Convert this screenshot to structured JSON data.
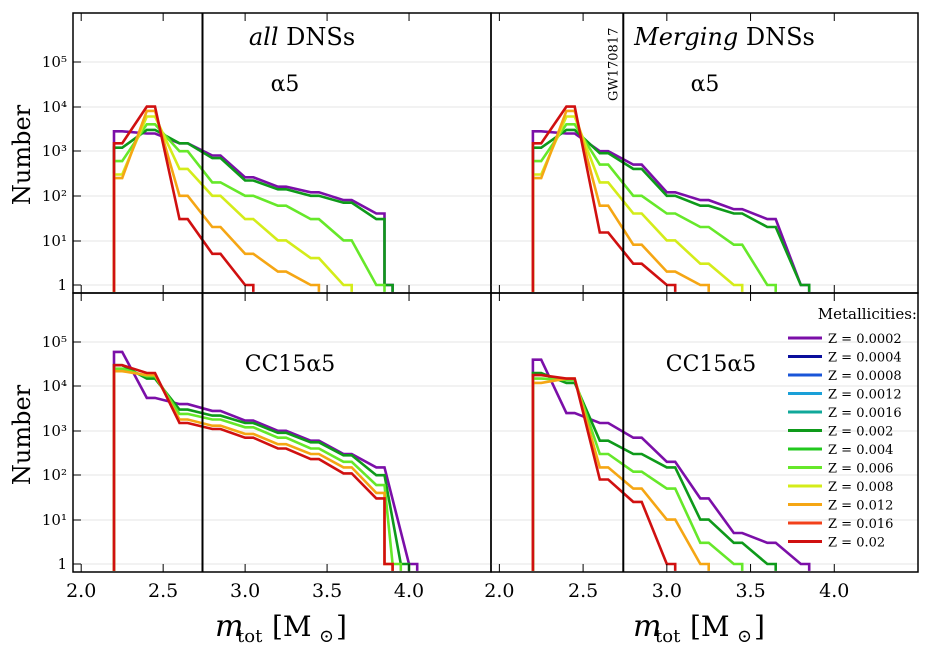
{
  "figure": {
    "xlabel": "m",
    "xlabel_sub": "tot",
    "xlabel_unit": "[M",
    "xlabel_unit_sub": "⊙",
    "xlabel_close": "]",
    "ylabel": "Number",
    "legend_title": "Metallicities:",
    "vline_label": "GW170817"
  },
  "chart_data": [
    {
      "type": "line",
      "panel": "top-left",
      "title_italic": "all",
      "title_rest": " DNSs",
      "model": "α5",
      "ylog": true,
      "xlim": [
        1.95,
        4.5
      ],
      "ylim": [
        0.7,
        1000000
      ],
      "xticks": [
        "2.0",
        "2.5",
        "3.0",
        "3.5",
        "4.0"
      ],
      "yticks": [
        "1",
        "10¹",
        "10²",
        "10³",
        "10⁴",
        "10⁵"
      ],
      "vline_x": 2.74,
      "series": [
        {
          "name": "Z = 0.0002",
          "x": [
            2.2,
            2.4,
            2.6,
            2.8,
            3.0,
            3.2,
            3.4,
            3.6,
            3.8,
            3.85
          ],
          "values": [
            2800,
            2500,
            1500,
            800,
            260,
            160,
            120,
            80,
            40,
            1
          ]
        },
        {
          "name": "Z = 0.002",
          "x": [
            2.2,
            2.4,
            2.6,
            2.8,
            3.0,
            3.2,
            3.4,
            3.6,
            3.8,
            3.85
          ],
          "values": [
            1200,
            3000,
            1500,
            700,
            220,
            140,
            100,
            70,
            30,
            1
          ]
        },
        {
          "name": "Z = 0.006",
          "x": [
            2.2,
            2.4,
            2.6,
            2.8,
            3.0,
            3.2,
            3.4,
            3.6,
            3.8
          ],
          "values": [
            600,
            4000,
            1000,
            200,
            100,
            60,
            30,
            10,
            1
          ]
        },
        {
          "name": "Z = 0.008",
          "x": [
            2.2,
            2.4,
            2.6,
            2.8,
            3.0,
            3.2,
            3.4,
            3.6
          ],
          "values": [
            300,
            6000,
            400,
            100,
            30,
            10,
            4,
            1
          ]
        },
        {
          "name": "Z = 0.012",
          "x": [
            2.2,
            2.4,
            2.6,
            2.8,
            3.0,
            3.2,
            3.4
          ],
          "values": [
            250,
            8000,
            100,
            20,
            5,
            2,
            1
          ]
        },
        {
          "name": "Z = 0.02",
          "x": [
            2.2,
            2.4,
            2.6,
            2.8,
            3.0
          ],
          "values": [
            1500,
            10000,
            30,
            5,
            1
          ]
        }
      ]
    },
    {
      "type": "line",
      "panel": "top-right",
      "title_italic": "Merging",
      "title_rest": " DNSs",
      "model": "α5",
      "ylog": true,
      "xlim": [
        1.95,
        4.5
      ],
      "ylim": [
        0.7,
        1000000
      ],
      "xticks": [
        "2.0",
        "2.5",
        "3.0",
        "3.5",
        "4.0"
      ],
      "yticks": [],
      "vline_x": 2.74,
      "series": [
        {
          "name": "Z = 0.0002",
          "x": [
            2.2,
            2.4,
            2.6,
            2.8,
            3.0,
            3.2,
            3.4,
            3.6,
            3.8
          ],
          "values": [
            2800,
            2500,
            1000,
            500,
            120,
            80,
            50,
            30,
            1
          ]
        },
        {
          "name": "Z = 0.002",
          "x": [
            2.2,
            2.4,
            2.6,
            2.8,
            3.0,
            3.2,
            3.4,
            3.6,
            3.8
          ],
          "values": [
            1200,
            3000,
            900,
            400,
            100,
            60,
            40,
            20,
            1
          ]
        },
        {
          "name": "Z = 0.006",
          "x": [
            2.2,
            2.4,
            2.6,
            2.8,
            3.0,
            3.2,
            3.4,
            3.6
          ],
          "values": [
            600,
            4000,
            500,
            100,
            40,
            20,
            8,
            1
          ]
        },
        {
          "name": "Z = 0.008",
          "x": [
            2.2,
            2.4,
            2.6,
            2.8,
            3.0,
            3.2,
            3.4
          ],
          "values": [
            300,
            6000,
            200,
            40,
            10,
            3,
            1
          ]
        },
        {
          "name": "Z = 0.012",
          "x": [
            2.2,
            2.4,
            2.6,
            2.8,
            3.0,
            3.2
          ],
          "values": [
            250,
            8000,
            60,
            8,
            2,
            1
          ]
        },
        {
          "name": "Z = 0.02",
          "x": [
            2.2,
            2.4,
            2.6,
            2.8,
            3.0
          ],
          "values": [
            1500,
            10000,
            15,
            3,
            1
          ]
        }
      ]
    },
    {
      "type": "line",
      "panel": "bottom-left",
      "model": "CC15α5",
      "ylog": true,
      "xlim": [
        1.95,
        4.5
      ],
      "ylim": [
        0.7,
        1000000
      ],
      "xticks": [
        "2.0",
        "2.5",
        "3.0",
        "3.5",
        "4.0"
      ],
      "yticks": [
        "1",
        "10¹",
        "10²",
        "10³",
        "10⁴",
        "10⁵"
      ],
      "vline_x": 2.74,
      "series": [
        {
          "name": "Z = 0.0002",
          "x": [
            2.2,
            2.4,
            2.6,
            2.8,
            3.0,
            3.2,
            3.4,
            3.6,
            3.8,
            4.0
          ],
          "values": [
            60000,
            5500,
            4000,
            2800,
            1700,
            1000,
            600,
            300,
            150,
            1
          ]
        },
        {
          "name": "Z = 0.002",
          "x": [
            2.2,
            2.4,
            2.6,
            2.8,
            3.0,
            3.2,
            3.4,
            3.6,
            3.8,
            3.95
          ],
          "values": [
            30000,
            15000,
            3000,
            2200,
            1500,
            900,
            550,
            280,
            100,
            1
          ]
        },
        {
          "name": "Z = 0.006",
          "x": [
            2.2,
            2.4,
            2.6,
            2.8,
            3.0,
            3.2,
            3.4,
            3.6,
            3.8,
            3.9
          ],
          "values": [
            25000,
            17000,
            2400,
            1800,
            1200,
            700,
            400,
            200,
            60,
            1
          ]
        },
        {
          "name": "Z = 0.012",
          "x": [
            2.2,
            2.4,
            2.6,
            2.8,
            3.0,
            3.2,
            3.4,
            3.6,
            3.8,
            3.85
          ],
          "values": [
            22000,
            18000,
            1800,
            1300,
            850,
            500,
            300,
            150,
            40,
            1
          ]
        },
        {
          "name": "Z = 0.02",
          "x": [
            2.2,
            2.4,
            2.6,
            2.8,
            3.0,
            3.2,
            3.4,
            3.6,
            3.8,
            3.85
          ],
          "values": [
            30000,
            20000,
            1500,
            1100,
            700,
            400,
            230,
            110,
            30,
            1
          ]
        }
      ]
    },
    {
      "type": "line",
      "panel": "bottom-right",
      "model": "CC15α5",
      "ylog": true,
      "xlim": [
        1.95,
        4.5
      ],
      "ylim": [
        0.7,
        1000000
      ],
      "xticks": [
        "2.0",
        "2.5",
        "3.0",
        "3.5",
        "4.0"
      ],
      "yticks": [],
      "vline_x": 2.74,
      "series": [
        {
          "name": "Z = 0.0002",
          "x": [
            2.2,
            2.4,
            2.6,
            2.8,
            3.0,
            3.2,
            3.4,
            3.6,
            3.8
          ],
          "values": [
            40000,
            2500,
            1500,
            700,
            200,
            30,
            5,
            3,
            1
          ]
        },
        {
          "name": "Z = 0.002",
          "x": [
            2.2,
            2.4,
            2.6,
            2.8,
            3.0,
            3.2,
            3.4,
            3.6
          ],
          "values": [
            20000,
            12000,
            600,
            300,
            150,
            10,
            3,
            1
          ]
        },
        {
          "name": "Z = 0.006",
          "x": [
            2.2,
            2.4,
            2.6,
            2.8,
            3.0,
            3.2,
            3.4
          ],
          "values": [
            15000,
            14000,
            300,
            120,
            50,
            3,
            1
          ]
        },
        {
          "name": "Z = 0.012",
          "x": [
            2.2,
            2.4,
            2.6,
            2.8,
            3.0,
            3.2
          ],
          "values": [
            12000,
            15000,
            150,
            50,
            10,
            1
          ]
        },
        {
          "name": "Z = 0.02",
          "x": [
            2.2,
            2.4,
            2.6,
            2.8,
            3.0
          ],
          "values": [
            18000,
            15000,
            80,
            25,
            1
          ]
        }
      ]
    }
  ],
  "legend": {
    "title": "Metallicities:",
    "entries": [
      {
        "label": "Z = 0.0002",
        "color": "#7b0fa8"
      },
      {
        "label": "Z = 0.0004",
        "color": "#0a0f9c"
      },
      {
        "label": "Z = 0.0008",
        "color": "#1a55d8"
      },
      {
        "label": "Z = 0.0012",
        "color": "#1aa0d8"
      },
      {
        "label": "Z = 0.0016",
        "color": "#10a89a"
      },
      {
        "label": "Z = 0.002",
        "color": "#0e9a1a"
      },
      {
        "label": "Z = 0.004",
        "color": "#22c81e"
      },
      {
        "label": "Z = 0.006",
        "color": "#66e82a"
      },
      {
        "label": "Z = 0.008",
        "color": "#d4ec1a"
      },
      {
        "label": "Z = 0.012",
        "color": "#f5a614"
      },
      {
        "label": "Z = 0.016",
        "color": "#f2401a"
      },
      {
        "label": "Z = 0.02",
        "color": "#d01010"
      }
    ]
  }
}
